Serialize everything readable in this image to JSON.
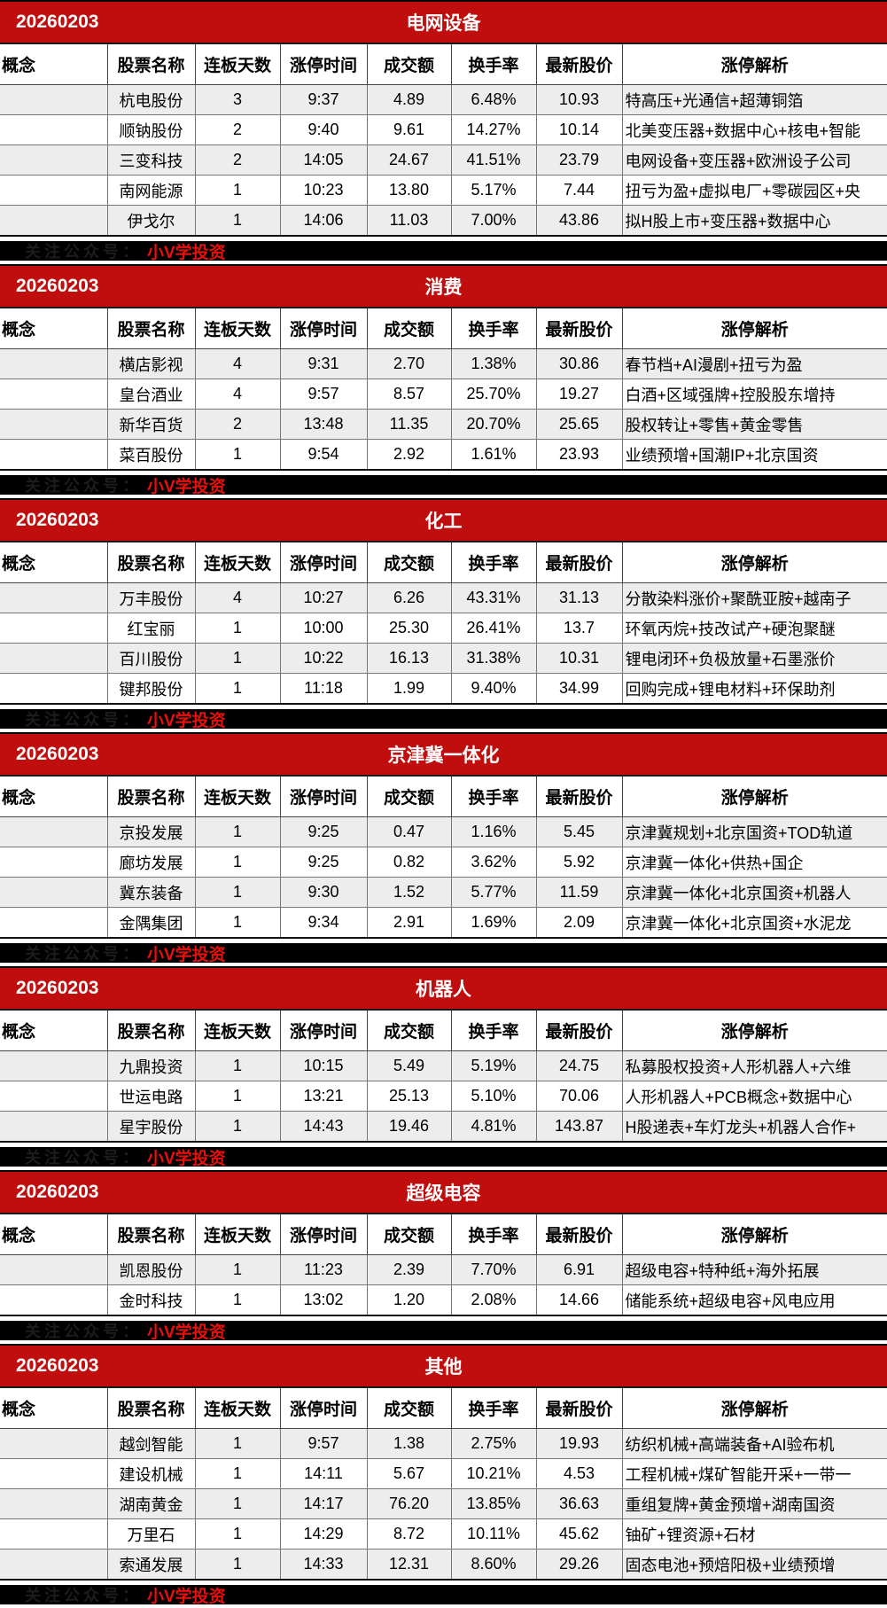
{
  "date": "20260203",
  "watermark": {
    "faint_text": "关注公众号：",
    "label": "小V学投资"
  },
  "columns": [
    "概念",
    "股票名称",
    "连板天数",
    "涨停时间",
    "成交额",
    "换手率",
    "最新股价",
    "涨停解析"
  ],
  "colors": {
    "section_header_red": "#c00d0d",
    "watermark_bar_black": "#000000",
    "watermark_text_red": "#e8100c",
    "row_alternate_gray": "#ededed"
  },
  "sections": [
    {
      "title": "电网设备",
      "rows": [
        {
          "concept": "",
          "name": "杭电股份",
          "days": "3",
          "time": "9:37",
          "amount": "4.89",
          "turnover": "6.48%",
          "price": "10.93",
          "analysis": "特高压+光通信+超薄铜箔"
        },
        {
          "concept": "",
          "name": "顺钠股份",
          "days": "2",
          "time": "9:40",
          "amount": "9.61",
          "turnover": "14.27%",
          "price": "10.14",
          "analysis": "北美变压器+数据中心+核电+智能"
        },
        {
          "concept": "",
          "name": "三变科技",
          "days": "2",
          "time": "14:05",
          "amount": "24.67",
          "turnover": "41.51%",
          "price": "23.79",
          "analysis": "电网设备+变压器+欧洲设子公司"
        },
        {
          "concept": "",
          "name": "南网能源",
          "days": "1",
          "time": "10:23",
          "amount": "13.80",
          "turnover": "5.17%",
          "price": "7.44",
          "analysis": "扭亏为盈+虚拟电厂+零碳园区+央"
        },
        {
          "concept": "",
          "name": "伊戈尔",
          "days": "1",
          "time": "14:06",
          "amount": "11.03",
          "turnover": "7.00%",
          "price": "43.86",
          "analysis": "拟H股上市+变压器+数据中心"
        }
      ]
    },
    {
      "title": "消费",
      "rows": [
        {
          "concept": "",
          "name": "横店影视",
          "days": "4",
          "time": "9:31",
          "amount": "2.70",
          "turnover": "1.38%",
          "price": "30.86",
          "analysis": "春节档+AI漫剧+扭亏为盈"
        },
        {
          "concept": "",
          "name": "皇台酒业",
          "days": "4",
          "time": "9:57",
          "amount": "8.57",
          "turnover": "25.70%",
          "price": "19.27",
          "analysis": "白酒+区域强牌+控股股东增持"
        },
        {
          "concept": "",
          "name": "新华百货",
          "days": "2",
          "time": "13:48",
          "amount": "11.35",
          "turnover": "20.70%",
          "price": "25.65",
          "analysis": "股权转让+零售+黄金零售"
        },
        {
          "concept": "",
          "name": "菜百股份",
          "days": "1",
          "time": "9:54",
          "amount": "2.92",
          "turnover": "1.61%",
          "price": "23.93",
          "analysis": "业绩预增+国潮IP+北京国资"
        }
      ]
    },
    {
      "title": "化工",
      "rows": [
        {
          "concept": "",
          "name": "万丰股份",
          "days": "4",
          "time": "10:27",
          "amount": "6.26",
          "turnover": "43.31%",
          "price": "31.13",
          "analysis": "分散染料涨价+聚酰亚胺+越南子"
        },
        {
          "concept": "",
          "name": "红宝丽",
          "days": "1",
          "time": "10:00",
          "amount": "25.30",
          "turnover": "26.41%",
          "price": "13.7",
          "analysis": "环氧丙烷+技改试产+硬泡聚醚"
        },
        {
          "concept": "",
          "name": "百川股份",
          "days": "1",
          "time": "10:22",
          "amount": "16.13",
          "turnover": "31.38%",
          "price": "10.31",
          "analysis": "锂电闭环+负极放量+石墨涨价"
        },
        {
          "concept": "",
          "name": "键邦股份",
          "days": "1",
          "time": "11:18",
          "amount": "1.99",
          "turnover": "9.40%",
          "price": "34.99",
          "analysis": "回购完成+锂电材料+环保助剂"
        }
      ]
    },
    {
      "title": "京津冀一体化",
      "rows": [
        {
          "concept": "",
          "name": "京投发展",
          "days": "1",
          "time": "9:25",
          "amount": "0.47",
          "turnover": "1.16%",
          "price": "5.45",
          "analysis": "京津冀规划+北京国资+TOD轨道"
        },
        {
          "concept": "",
          "name": "廊坊发展",
          "days": "1",
          "time": "9:25",
          "amount": "0.82",
          "turnover": "3.62%",
          "price": "5.92",
          "analysis": "京津冀一体化+供热+国企"
        },
        {
          "concept": "",
          "name": "冀东装备",
          "days": "1",
          "time": "9:30",
          "amount": "1.52",
          "turnover": "5.77%",
          "price": "11.59",
          "analysis": "京津冀一体化+北京国资+机器人"
        },
        {
          "concept": "",
          "name": "金隅集团",
          "days": "1",
          "time": "9:34",
          "amount": "2.91",
          "turnover": "1.69%",
          "price": "2.09",
          "analysis": "京津冀一体化+北京国资+水泥龙"
        }
      ]
    },
    {
      "title": "机器人",
      "rows": [
        {
          "concept": "",
          "name": "九鼎投资",
          "days": "1",
          "time": "10:15",
          "amount": "5.49",
          "turnover": "5.19%",
          "price": "24.75",
          "analysis": "私募股权投资+人形机器人+六维"
        },
        {
          "concept": "",
          "name": "世运电路",
          "days": "1",
          "time": "13:21",
          "amount": "25.13",
          "turnover": "5.10%",
          "price": "70.06",
          "analysis": "人形机器人+PCB概念+数据中心"
        },
        {
          "concept": "",
          "name": "星宇股份",
          "days": "1",
          "time": "14:43",
          "amount": "19.46",
          "turnover": "4.81%",
          "price": "143.87",
          "analysis": "H股递表+车灯龙头+机器人合作+"
        }
      ]
    },
    {
      "title": "超级电容",
      "rows": [
        {
          "concept": "",
          "name": "凯恩股份",
          "days": "1",
          "time": "11:23",
          "amount": "2.39",
          "turnover": "7.70%",
          "price": "6.91",
          "analysis": "超级电容+特种纸+海外拓展"
        },
        {
          "concept": "",
          "name": "金时科技",
          "days": "1",
          "time": "13:02",
          "amount": "1.20",
          "turnover": "2.08%",
          "price": "14.66",
          "analysis": "储能系统+超级电容+风电应用"
        }
      ]
    },
    {
      "title": "其他",
      "rows": [
        {
          "concept": "",
          "name": "越剑智能",
          "days": "1",
          "time": "9:57",
          "amount": "1.38",
          "turnover": "2.75%",
          "price": "19.93",
          "analysis": "纺织机械+高端装备+AI验布机"
        },
        {
          "concept": "",
          "name": "建设机械",
          "days": "1",
          "time": "14:11",
          "amount": "5.67",
          "turnover": "10.21%",
          "price": "4.53",
          "analysis": "工程机械+煤矿智能开采+一带一"
        },
        {
          "concept": "",
          "name": "湖南黄金",
          "days": "1",
          "time": "14:17",
          "amount": "76.20",
          "turnover": "13.85%",
          "price": "36.63",
          "analysis": "重组复牌+黄金预增+湖南国资"
        },
        {
          "concept": "",
          "name": "万里石",
          "days": "1",
          "time": "14:29",
          "amount": "8.72",
          "turnover": "10.11%",
          "price": "45.62",
          "analysis": "铀矿+锂资源+石材"
        },
        {
          "concept": "",
          "name": "索通发展",
          "days": "1",
          "time": "14:33",
          "amount": "12.31",
          "turnover": "8.60%",
          "price": "29.26",
          "analysis": "固态电池+预焙阳极+业绩预增"
        }
      ]
    }
  ]
}
